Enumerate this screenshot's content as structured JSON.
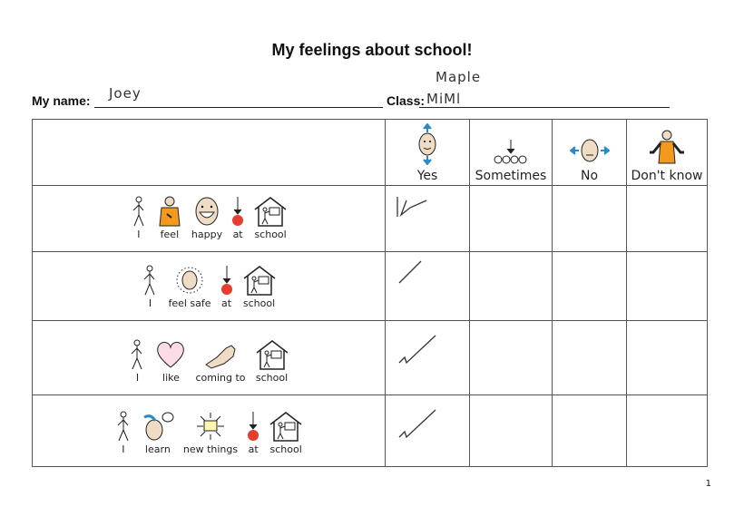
{
  "title": "My feelings about school!",
  "name_label": "My name:",
  "name_value": "Joey",
  "class_label": "Class:",
  "class_value": "MiMl",
  "class_value_above": "Maple",
  "options": [
    {
      "label": "Yes",
      "icon": "face-nodding-icon"
    },
    {
      "label": "Sometimes",
      "icon": "clocks-arrow-icon"
    },
    {
      "label": "No",
      "icon": "face-shaking-icon"
    },
    {
      "label": "Don't know",
      "icon": "person-shrug-icon"
    }
  ],
  "rows": [
    {
      "words": [
        {
          "t": "I",
          "icon": "person"
        },
        {
          "t": "feel",
          "icon": "feel"
        },
        {
          "t": "happy",
          "icon": "happy"
        },
        {
          "t": "at",
          "icon": "at"
        },
        {
          "t": "school",
          "icon": "school"
        }
      ],
      "answer": "Yes"
    },
    {
      "words": [
        {
          "t": "I",
          "icon": "person"
        },
        {
          "t": "feel safe",
          "icon": "safe"
        },
        {
          "t": "at",
          "icon": "at"
        },
        {
          "t": "school",
          "icon": "school"
        }
      ],
      "answer": "Yes"
    },
    {
      "words": [
        {
          "t": "I",
          "icon": "person"
        },
        {
          "t": "like",
          "icon": "heart"
        },
        {
          "t": "coming to",
          "icon": "hand"
        },
        {
          "t": "school",
          "icon": "school"
        }
      ],
      "answer": "Yes"
    },
    {
      "words": [
        {
          "t": "I",
          "icon": "person"
        },
        {
          "t": "learn",
          "icon": "learn"
        },
        {
          "t": "new things",
          "icon": "new"
        },
        {
          "t": "at",
          "icon": "at"
        },
        {
          "t": "school",
          "icon": "school"
        }
      ],
      "answer": "Yes"
    }
  ],
  "page_number": "1",
  "colors": {
    "orange": "#f39a1e",
    "red": "#e53d2f",
    "blue": "#2a8ac6",
    "skin": "#efdcc4",
    "pink": "#fbdbe6"
  }
}
